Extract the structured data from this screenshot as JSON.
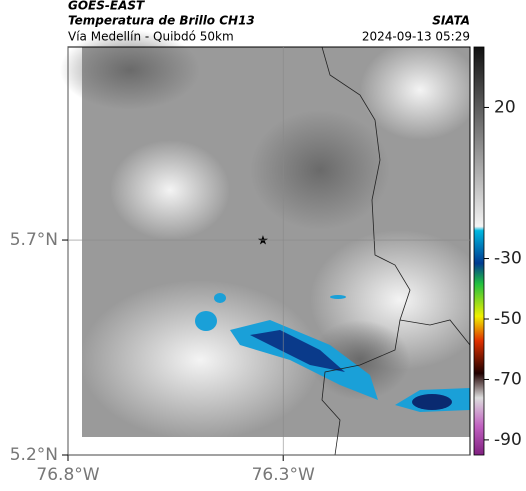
{
  "header": {
    "product": "GOES-EAST",
    "title": "Temperatura de Brillo CH13",
    "subtitle": "Vía Medellín - Quibdó 50km",
    "source": "SIATA",
    "timestamp": "2024-09-13 05:29"
  },
  "map": {
    "lonlim": [
      -76.8,
      -75.866
    ],
    "latlim": [
      5.2,
      6.149
    ],
    "lonticks": [
      {
        "value": -76.8,
        "label": "76.8°W"
      },
      {
        "value": -76.3,
        "label": "76.3°W"
      }
    ],
    "latticks": [
      {
        "value": 5.7,
        "label": "5.7°N"
      },
      {
        "value": 5.2,
        "label": "5.2°N"
      }
    ]
  },
  "colorbar": {
    "lim": [
      -95,
      40
    ],
    "ticks": [
      20,
      -30,
      -50,
      -70,
      -90
    ]
  }
}
